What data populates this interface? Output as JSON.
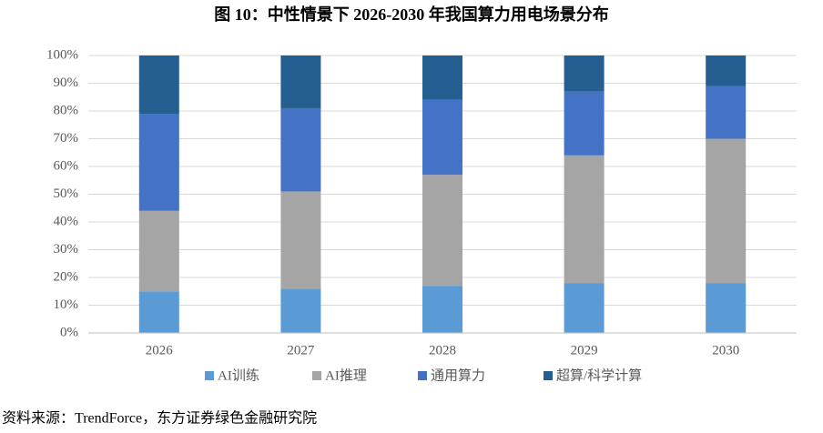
{
  "chart_data": {
    "type": "stacked_bar",
    "title": "图 10：中性情景下 2026-2030 年我国算力用电场景分布",
    "categories": [
      "2026",
      "2027",
      "2028",
      "2029",
      "2030"
    ],
    "series": [
      {
        "name": "AI训练",
        "color": "#5b9bd5",
        "values": [
          15,
          16,
          17,
          18,
          18
        ]
      },
      {
        "name": "AI推理",
        "color": "#a5a5a5",
        "values": [
          29,
          35,
          40,
          46,
          52
        ]
      },
      {
        "name": "通用算力",
        "color": "#4472c4",
        "values": [
          35,
          30,
          27,
          23,
          19
        ]
      },
      {
        "name": "超算/科学计算",
        "color": "#255e91",
        "values": [
          21,
          19,
          16,
          13,
          11
        ]
      }
    ],
    "ylim": [
      0,
      100
    ],
    "yticks": [
      {
        "value": 0,
        "label": "0%"
      },
      {
        "value": 10,
        "label": "10%"
      },
      {
        "value": 20,
        "label": "20%"
      },
      {
        "value": 30,
        "label": "30%"
      },
      {
        "value": 40,
        "label": "40%"
      },
      {
        "value": 50,
        "label": "50%"
      },
      {
        "value": 60,
        "label": "60%"
      },
      {
        "value": 70,
        "label": "70%"
      },
      {
        "value": 80,
        "label": "80%"
      },
      {
        "value": 90,
        "label": "90%"
      },
      {
        "value": 100,
        "label": "100%"
      }
    ],
    "grid": true,
    "legend": "bottom",
    "source": "资料来源：TrendForce，东方证券绿色金融研究院"
  }
}
